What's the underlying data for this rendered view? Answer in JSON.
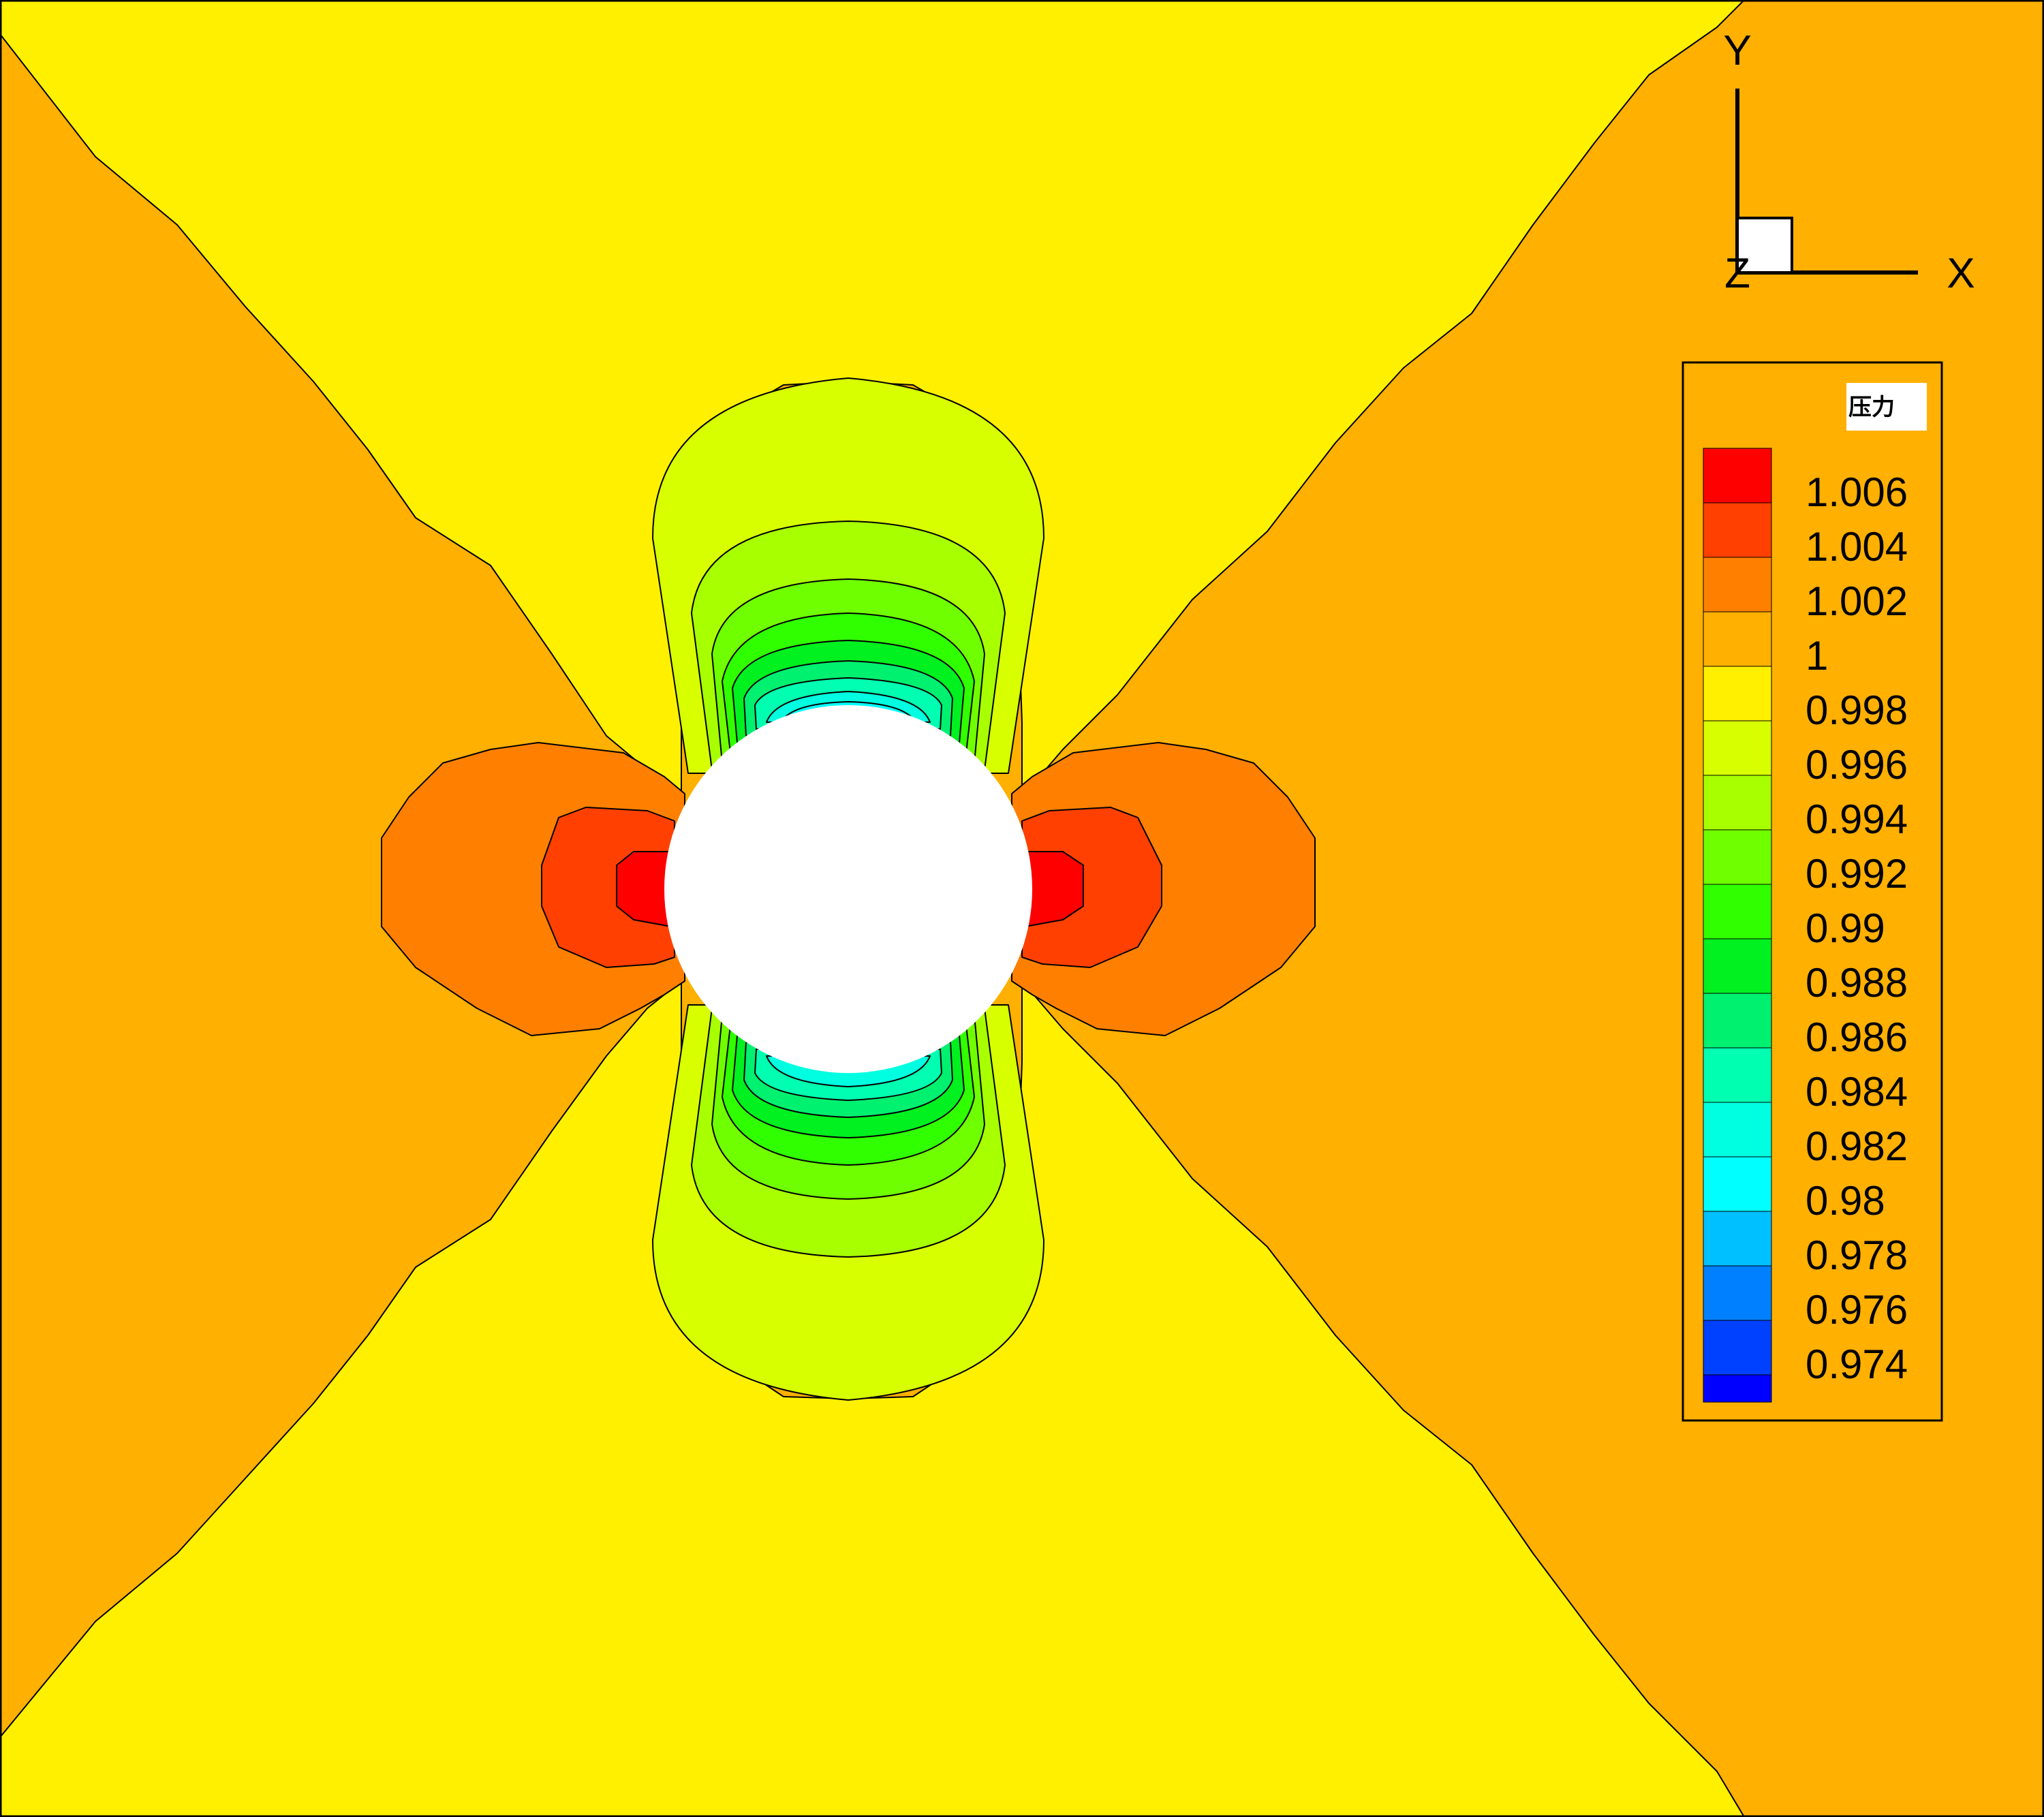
{
  "chart_data": {
    "type": "contour",
    "legend": {
      "title": "压力",
      "placement": "right",
      "levels": [
        {
          "label": "1.006",
          "value": 1.006,
          "color": "#FF0000"
        },
        {
          "label": "1.004",
          "value": 1.004,
          "color": "#FF4000"
        },
        {
          "label": "1.002",
          "value": 1.002,
          "color": "#FF8000"
        },
        {
          "label": "1",
          "value": 1.0,
          "color": "#FFB000"
        },
        {
          "label": "0.998",
          "value": 0.998,
          "color": "#FFF000"
        },
        {
          "label": "0.996",
          "value": 0.996,
          "color": "#D8FF00"
        },
        {
          "label": "0.994",
          "value": 0.994,
          "color": "#A8FF00"
        },
        {
          "label": "0.992",
          "value": 0.992,
          "color": "#70FF00"
        },
        {
          "label": "0.99",
          "value": 0.99,
          "color": "#30FF00"
        },
        {
          "label": "0.988",
          "value": 0.988,
          "color": "#00F020"
        },
        {
          "label": "0.986",
          "value": 0.986,
          "color": "#00F070"
        },
        {
          "label": "0.984",
          "value": 0.984,
          "color": "#00FFB0"
        },
        {
          "label": "0.982",
          "value": 0.982,
          "color": "#00FFE0"
        },
        {
          "label": "0.98",
          "value": 0.98,
          "color": "#00FFFF"
        },
        {
          "label": "0.978",
          "value": 0.978,
          "color": "#00C0FF"
        },
        {
          "label": "0.976",
          "value": 0.976,
          "color": "#0080FF"
        },
        {
          "label": "0.974",
          "value": 0.974,
          "color": "#0040FF"
        }
      ],
      "bottom_swatch_color": "#0000FF"
    },
    "axes": {
      "x_label": "X",
      "y_label": "Y",
      "z_label": "Z"
    },
    "obstacle": "circle",
    "background_colors": {
      "orange": "#FFB000",
      "yellow": "#FFF000"
    }
  }
}
